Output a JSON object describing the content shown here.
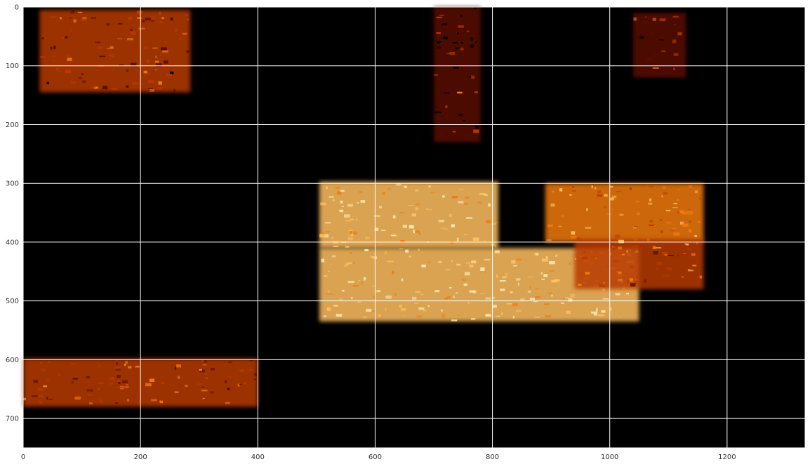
{
  "chart_data": {
    "type": "heatmap",
    "title": "",
    "xlabel": "",
    "ylabel": "",
    "xlim": [
      0,
      1333
    ],
    "ylim": [
      750,
      0
    ],
    "x_ticks": [
      0,
      200,
      400,
      600,
      800,
      1000,
      1200
    ],
    "y_ticks": [
      0,
      100,
      200,
      300,
      400,
      500,
      600,
      700
    ],
    "x_tick_labels": [
      "0",
      "200",
      "400",
      "600",
      "800",
      "1000",
      "1200"
    ],
    "y_tick_labels": [
      "0",
      "100",
      "200",
      "300",
      "400",
      "500",
      "600",
      "700"
    ],
    "grid": true,
    "grid_color": "#ffffff",
    "background_color": "#000000",
    "colormap": "afmhot",
    "colormap_stops": [
      "#000000",
      "#5a0a00",
      "#b83a00",
      "#f07a10",
      "#ffc060",
      "#ffe9b0"
    ],
    "regions": [
      {
        "x": [
          28,
          285
        ],
        "y": [
          5,
          145
        ],
        "intensity": 0.35
      },
      {
        "x": [
          0,
          400
        ],
        "y": [
          598,
          680
        ],
        "intensity": 0.4
      },
      {
        "x": [
          505,
          810
        ],
        "y": [
          297,
          410
        ],
        "intensity": 0.8
      },
      {
        "x": [
          505,
          1050
        ],
        "y": [
          410,
          535
        ],
        "intensity": 0.85
      },
      {
        "x": [
          890,
          1160
        ],
        "y": [
          300,
          400
        ],
        "intensity": 0.55
      },
      {
        "x": [
          940,
          1160
        ],
        "y": [
          395,
          480
        ],
        "intensity": 0.45
      },
      {
        "x": [
          700,
          780
        ],
        "y": [
          0,
          230
        ],
        "intensity": 0.2
      },
      {
        "x": [
          1040,
          1130
        ],
        "y": [
          10,
          120
        ],
        "intensity": 0.25
      }
    ]
  }
}
